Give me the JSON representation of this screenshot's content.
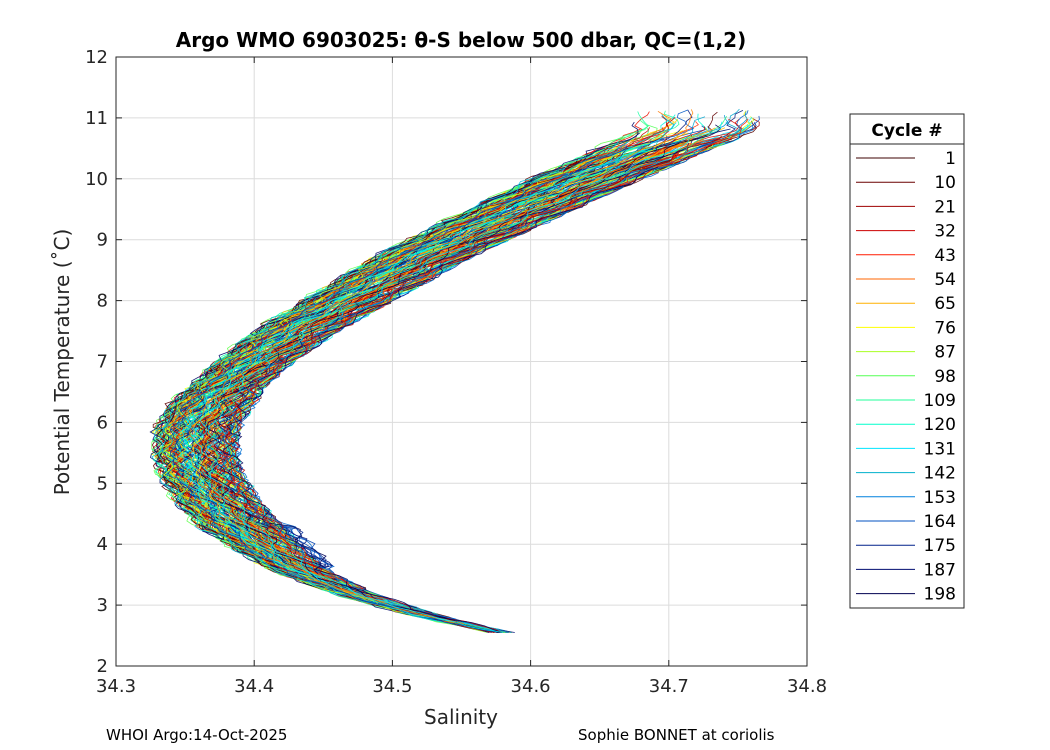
{
  "chart_data": {
    "type": "line",
    "title": "Argo WMO 6903025: θ-S below 500 dbar,  QC=(1,2)",
    "xlabel": "Salinity",
    "ylabel": "Potential Temperature (˚C)",
    "xlim": [
      34.3,
      34.8
    ],
    "ylim": [
      2,
      12
    ],
    "xticks": [
      "34.3",
      "34.4",
      "34.5",
      "34.6",
      "34.7",
      "34.8"
    ],
    "yticks": [
      "2",
      "3",
      "4",
      "5",
      "6",
      "7",
      "8",
      "9",
      "10",
      "11",
      "12"
    ],
    "grid": true,
    "legend_title": "Cycle #",
    "legend_position": "outside-right",
    "legend": [
      {
        "label": "1",
        "color": "#3d0000"
      },
      {
        "label": "10",
        "color": "#6a0000"
      },
      {
        "label": "21",
        "color": "#9e0000"
      },
      {
        "label": "32",
        "color": "#cc0000"
      },
      {
        "label": "43",
        "color": "#ff1a00"
      },
      {
        "label": "54",
        "color": "#ff6400"
      },
      {
        "label": "65",
        "color": "#ffb000"
      },
      {
        "label": "76",
        "color": "#ffff00"
      },
      {
        "label": "87",
        "color": "#aaff22"
      },
      {
        "label": "98",
        "color": "#55ff55"
      },
      {
        "label": "109",
        "color": "#22ff99"
      },
      {
        "label": "120",
        "color": "#00ffcc"
      },
      {
        "label": "131",
        "color": "#00e5ff"
      },
      {
        "label": "142",
        "color": "#00b0cc"
      },
      {
        "label": "153",
        "color": "#0080dd"
      },
      {
        "label": "164",
        "color": "#0050c0"
      },
      {
        "label": "175",
        "color": "#00208a"
      },
      {
        "label": "187",
        "color": "#000c70"
      },
      {
        "label": "198",
        "color": "#000050"
      }
    ],
    "mean_profile": [
      {
        "s": 34.578,
        "t": 2.55
      },
      {
        "s": 34.52,
        "t": 2.85
      },
      {
        "s": 34.47,
        "t": 3.2
      },
      {
        "s": 34.43,
        "t": 3.6
      },
      {
        "s": 34.405,
        "t": 4.0
      },
      {
        "s": 34.385,
        "t": 4.4
      },
      {
        "s": 34.37,
        "t": 4.8
      },
      {
        "s": 34.36,
        "t": 5.2
      },
      {
        "s": 34.357,
        "t": 5.6
      },
      {
        "s": 34.36,
        "t": 6.0
      },
      {
        "s": 34.372,
        "t": 6.4
      },
      {
        "s": 34.395,
        "t": 6.9
      },
      {
        "s": 34.43,
        "t": 7.5
      },
      {
        "s": 34.475,
        "t": 8.1
      },
      {
        "s": 34.52,
        "t": 8.7
      },
      {
        "s": 34.575,
        "t": 9.3
      },
      {
        "s": 34.63,
        "t": 9.9
      },
      {
        "s": 34.68,
        "t": 10.4
      },
      {
        "s": 34.72,
        "t": 10.8
      }
    ]
  },
  "footer": {
    "left": "WHOI Argo:14-Oct-2025",
    "right": "Sophie BONNET at coriolis"
  }
}
